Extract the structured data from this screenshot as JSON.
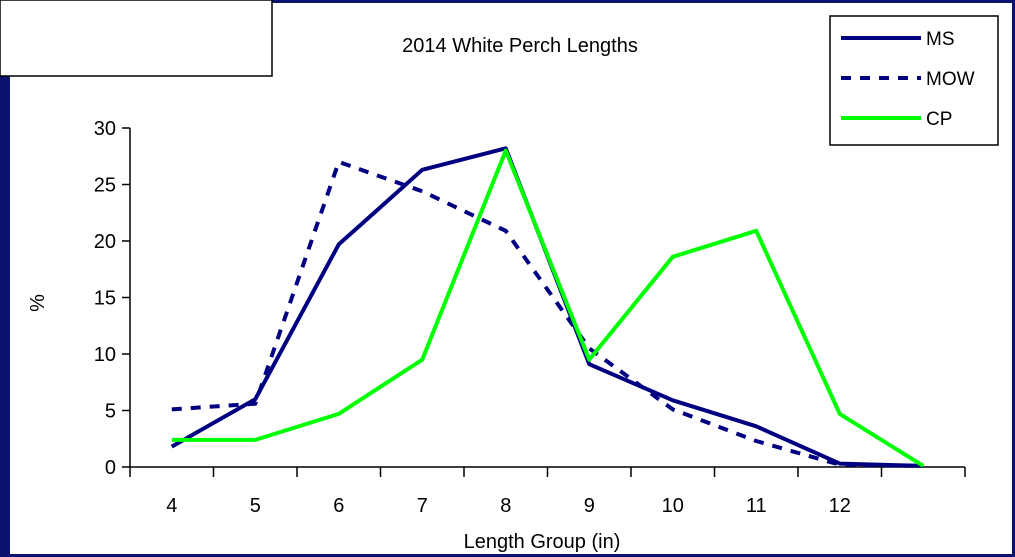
{
  "chart_data": {
    "type": "line",
    "title": "2014 White Perch Lengths",
    "xlabel": "Length Group (in)",
    "ylabel": "%",
    "categories": [
      "4",
      "5",
      "6",
      "7",
      "8",
      "9",
      "10",
      "11",
      "12",
      ""
    ],
    "ylim": [
      0,
      30
    ],
    "yticks": [
      0,
      5,
      10,
      15,
      20,
      25,
      30
    ],
    "grid": false,
    "legend_position": "top-right",
    "series": [
      {
        "name": "MS",
        "color": "#000080",
        "dash": "solid",
        "values": [
          1.8,
          6.0,
          19.7,
          26.3,
          28.2,
          9.1,
          5.9,
          3.6,
          0.3,
          0.1
        ]
      },
      {
        "name": "MOW",
        "color": "#000080",
        "dash": "dashed",
        "values": [
          5.1,
          5.6,
          27.0,
          24.4,
          20.9,
          10.5,
          5.1,
          2.3,
          0.2,
          0.1
        ]
      },
      {
        "name": "CP",
        "color": "#00ff00",
        "dash": "solid",
        "values": [
          2.4,
          2.4,
          4.7,
          9.5,
          28.0,
          9.5,
          18.6,
          20.9,
          4.7,
          0.1
        ]
      }
    ]
  }
}
